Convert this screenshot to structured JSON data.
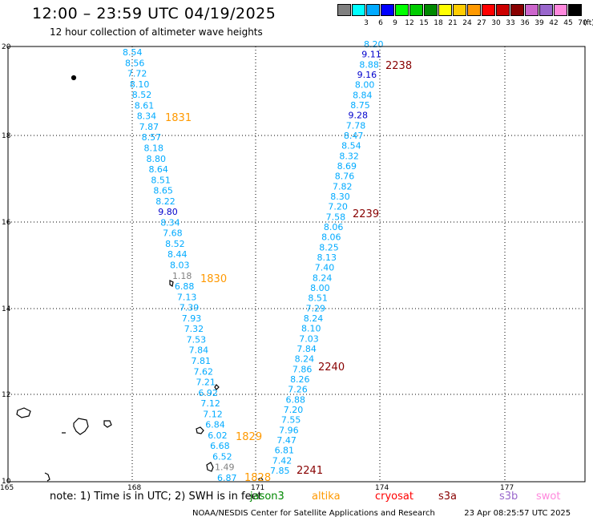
{
  "header": {
    "title": "12:00 – 23:59 UTC 04/19/2025",
    "subtitle": "12 hour collection of altimeter wave heights"
  },
  "legend": {
    "unit_label": "(ft)",
    "items": [
      {
        "label": "",
        "color": "#808080"
      },
      {
        "label": "3",
        "color": "#00ffff"
      },
      {
        "label": "6",
        "color": "#00aaff"
      },
      {
        "label": "9",
        "color": "#0000ff"
      },
      {
        "label": "12",
        "color": "#00ff00"
      },
      {
        "label": "15",
        "color": "#00cc00"
      },
      {
        "label": "18",
        "color": "#008800"
      },
      {
        "label": "21",
        "color": "#ffff00"
      },
      {
        "label": "24",
        "color": "#ffcc00"
      },
      {
        "label": "27",
        "color": "#ff9900"
      },
      {
        "label": "30",
        "color": "#ff0000"
      },
      {
        "label": "33",
        "color": "#cc0000"
      },
      {
        "label": "36",
        "color": "#880000"
      },
      {
        "label": "39",
        "color": "#cc66cc"
      },
      {
        "label": "42",
        "color": "#9966cc"
      },
      {
        "label": "45",
        "color": "#ff88dd"
      },
      {
        "label": "70",
        "color": "#000000"
      }
    ]
  },
  "map": {
    "lon_ticks": [
      "165",
      "168",
      "171",
      "174",
      "177"
    ],
    "lat_ticks": [
      "10",
      "12",
      "14",
      "16",
      "18",
      "20"
    ],
    "track_color": "#00aaff",
    "track_a": {
      "values": [
        "8.54",
        "8.56",
        "7.72",
        "8.10",
        "8.52",
        "8.61",
        "8.34",
        "7.87",
        "8.57",
        "8.18",
        "8.80",
        "8.64",
        "8.51",
        "8.65",
        "8.22",
        "9.80",
        "8.34",
        "7.68",
        "8.52",
        "8.44",
        "8.03",
        "1.18",
        "6.88",
        "7.13",
        "7.39",
        "7.93",
        "7.32",
        "7.53",
        "7.84",
        "7.81",
        "7.62",
        "7.21",
        "6.92",
        "7.12",
        "7.12",
        "6.84",
        "6.02",
        "6.68",
        "6.52",
        "1.49",
        "6.87"
      ],
      "colors": {
        "15": "#0000cc",
        "21": "#808080",
        "39": "#808080"
      }
    },
    "track_b": {
      "values": [
        "8.20",
        "9.11",
        "8.88",
        "9.16",
        "8.00",
        "8.84",
        "8.75",
        "9.28",
        "7.78",
        "8.47",
        "8.54",
        "8.32",
        "8.69",
        "8.76",
        "7.82",
        "8.30",
        "7.20",
        "7.58",
        "8.06",
        "8.06",
        "8.25",
        "8.13",
        "7.40",
        "8.24",
        "8.00",
        "8.51",
        "7.29",
        "8.24",
        "8.10",
        "7.03",
        "7.84",
        "8.24",
        "7.86",
        "8.26",
        "7.26",
        "6.88",
        "7.20",
        "7.55",
        "7.96",
        "7.47",
        "6.81",
        "7.42",
        "7.85"
      ],
      "colors": {
        "1": "#0000cc",
        "3": "#0000cc",
        "7": "#0000cc"
      }
    },
    "time_labels": [
      {
        "text": "2238",
        "color": "#880000"
      },
      {
        "text": "1831",
        "color": "#ff9900"
      },
      {
        "text": "2239",
        "color": "#880000"
      },
      {
        "text": "1830",
        "color": "#ff9900"
      },
      {
        "text": "2240",
        "color": "#880000"
      },
      {
        "text": "1829",
        "color": "#ff9900"
      },
      {
        "text": "2241",
        "color": "#880000"
      },
      {
        "text": "1828",
        "color": "#ff9900"
      }
    ]
  },
  "footer": {
    "note": "note: 1) Time is in UTC; 2) SWH is in feet",
    "satellites": [
      {
        "name": "jason3",
        "color": "#008800"
      },
      {
        "name": "altika",
        "color": "#ff9900"
      },
      {
        "name": "cryosat",
        "color": "#ff0000"
      },
      {
        "name": "s3a",
        "color": "#880000"
      },
      {
        "name": "s3b",
        "color": "#9966cc"
      },
      {
        "name": "swot",
        "color": "#ff88dd"
      }
    ],
    "credit": "NOAA/NESDIS Center for Satellite Applications and Research",
    "timestamp": "23 Apr 08:25:57 UTC 2025"
  }
}
